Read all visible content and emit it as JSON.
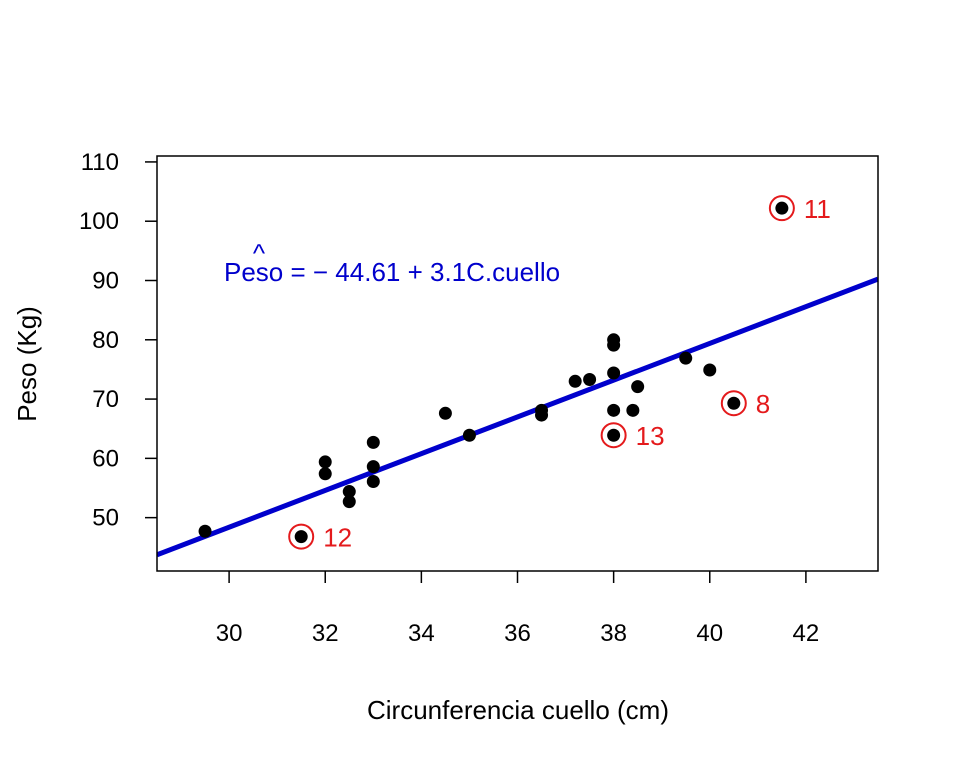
{
  "chart_data": {
    "type": "scatter",
    "xlabel": "Circunferencia cuello (cm)",
    "ylabel": "Peso (Kg)",
    "xlim": [
      28.5,
      43.5
    ],
    "ylim": [
      41,
      111
    ],
    "xticks": [
      30,
      32,
      34,
      36,
      38,
      40,
      42
    ],
    "yticks": [
      50,
      60,
      70,
      80,
      90,
      100,
      110
    ],
    "grid": false,
    "points": [
      {
        "x": 29.5,
        "y": 47.7
      },
      {
        "x": 31.5,
        "y": 46.8
      },
      {
        "x": 32.0,
        "y": 59.4
      },
      {
        "x": 32.0,
        "y": 57.4
      },
      {
        "x": 32.5,
        "y": 54.4
      },
      {
        "x": 32.5,
        "y": 52.7
      },
      {
        "x": 33.0,
        "y": 62.7
      },
      {
        "x": 33.0,
        "y": 58.6
      },
      {
        "x": 33.0,
        "y": 56.1
      },
      {
        "x": 34.5,
        "y": 67.6
      },
      {
        "x": 35.0,
        "y": 63.9
      },
      {
        "x": 36.5,
        "y": 68.1
      },
      {
        "x": 36.5,
        "y": 67.3
      },
      {
        "x": 37.2,
        "y": 73.0
      },
      {
        "x": 37.5,
        "y": 73.3
      },
      {
        "x": 38.0,
        "y": 80.0
      },
      {
        "x": 38.0,
        "y": 79.1
      },
      {
        "x": 38.0,
        "y": 74.4
      },
      {
        "x": 38.0,
        "y": 68.1
      },
      {
        "x": 38.0,
        "y": 63.9
      },
      {
        "x": 38.4,
        "y": 68.1
      },
      {
        "x": 38.5,
        "y": 72.1
      },
      {
        "x": 39.5,
        "y": 76.9
      },
      {
        "x": 40.0,
        "y": 74.9
      },
      {
        "x": 40.5,
        "y": 69.3
      },
      {
        "x": 41.5,
        "y": 102.2
      }
    ],
    "regression": {
      "intercept": -44.61,
      "slope": 3.1,
      "color": "#0000cc",
      "equation_hat": "^",
      "equation_text": "Peso = − 44.61 + 3.1C.cuello"
    },
    "highlighted": [
      {
        "x": 41.5,
        "y": 102.2,
        "label": "11"
      },
      {
        "x": 40.5,
        "y": 69.3,
        "label": "8"
      },
      {
        "x": 38.0,
        "y": 63.9,
        "label": "13"
      },
      {
        "x": 31.5,
        "y": 46.8,
        "label": "12"
      }
    ],
    "point_color": "#000000",
    "highlight_color": "#e41a1c"
  }
}
